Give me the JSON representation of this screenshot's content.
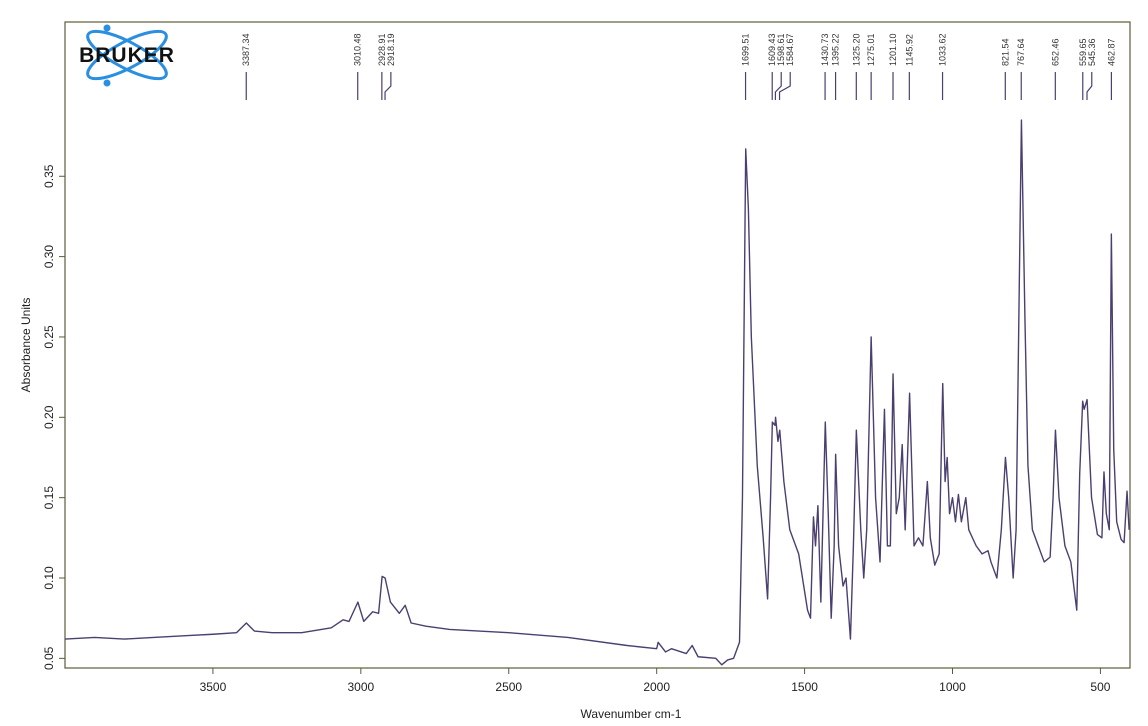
{
  "logo": "BRUKER",
  "chart_data": {
    "type": "line",
    "x_label": "Wavenumber cm-1",
    "y_label": "Absorbance Units",
    "xlim": [
      4000,
      400
    ],
    "ylim": [
      0.044,
      0.446
    ],
    "xticks": [
      3500,
      3000,
      2500,
      2000,
      1500,
      1000,
      500
    ],
    "yticks": [
      {
        "value": 0.05,
        "label": "0.05"
      },
      {
        "value": 0.1,
        "label": "0.10"
      },
      {
        "value": 0.15,
        "label": "0.15"
      },
      {
        "value": 0.2,
        "label": "0.20"
      },
      {
        "value": 0.25,
        "label": "0.25"
      },
      {
        "value": 0.3,
        "label": "0.30"
      },
      {
        "value": 0.35,
        "label": "0.35"
      }
    ],
    "peaks": [
      3387.34,
      3010.48,
      2928.91,
      2918.19,
      1699.51,
      1609.43,
      1598.61,
      1584.67,
      1430.73,
      1395.22,
      {
        "value": 1325.2,
        "label": "1325.20"
      },
      1275.01,
      {
        "value": 1201.1,
        "label": "1201.10"
      },
      1145.92,
      1033.62,
      821.54,
      767.64,
      652.46,
      559.65,
      545.36,
      462.87
    ],
    "series": [
      {
        "name": "spectrum",
        "color": "#4b3f70",
        "x": [
          4000,
          3900,
          3800,
          3700,
          3600,
          3500,
          3420,
          3387,
          3360,
          3300,
          3200,
          3100,
          3060,
          3040,
          3010,
          2990,
          2960,
          2940,
          2928,
          2918,
          2900,
          2870,
          2850,
          2830,
          2780,
          2700,
          2500,
          2300,
          2100,
          2000,
          1995,
          1970,
          1950,
          1900,
          1880,
          1860,
          1800,
          1780,
          1760,
          1740,
          1720,
          1710,
          1699,
          1690,
          1680,
          1660,
          1640,
          1625,
          1615,
          1609,
          1600,
          1598,
          1590,
          1584,
          1570,
          1550,
          1520,
          1490,
          1480,
          1470,
          1463,
          1455,
          1445,
          1430,
          1420,
          1410,
          1400,
          1395,
          1385,
          1370,
          1360,
          1345,
          1335,
          1325,
          1310,
          1300,
          1290,
          1275,
          1260,
          1245,
          1230,
          1220,
          1210,
          1201,
          1190,
          1180,
          1170,
          1160,
          1145,
          1130,
          1115,
          1100,
          1085,
          1075,
          1060,
          1045,
          1033,
          1025,
          1018,
          1010,
          1000,
          990,
          980,
          970,
          955,
          945,
          920,
          900,
          880,
          870,
          850,
          835,
          821,
          810,
          795,
          785,
          767,
          755,
          745,
          730,
          710,
          690,
          670,
          660,
          652,
          640,
          620,
          600,
          580,
          570,
          560,
          555,
          545,
          530,
          510,
          495,
          488,
          480,
          470,
          463,
          455,
          445,
          430,
          420,
          410,
          403
        ],
        "values": [
          0.062,
          0.063,
          0.062,
          0.063,
          0.064,
          0.065,
          0.066,
          0.072,
          0.067,
          0.066,
          0.066,
          0.069,
          0.074,
          0.073,
          0.085,
          0.073,
          0.079,
          0.078,
          0.101,
          0.1,
          0.085,
          0.078,
          0.083,
          0.072,
          0.07,
          0.068,
          0.066,
          0.063,
          0.058,
          0.056,
          0.06,
          0.054,
          0.056,
          0.053,
          0.058,
          0.051,
          0.05,
          0.046,
          0.049,
          0.05,
          0.06,
          0.15,
          0.367,
          0.33,
          0.25,
          0.17,
          0.125,
          0.087,
          0.15,
          0.197,
          0.195,
          0.2,
          0.185,
          0.192,
          0.16,
          0.13,
          0.115,
          0.08,
          0.075,
          0.138,
          0.12,
          0.145,
          0.085,
          0.197,
          0.14,
          0.075,
          0.12,
          0.177,
          0.12,
          0.095,
          0.1,
          0.062,
          0.12,
          0.192,
          0.13,
          0.1,
          0.13,
          0.25,
          0.15,
          0.11,
          0.205,
          0.12,
          0.12,
          0.227,
          0.14,
          0.15,
          0.183,
          0.13,
          0.215,
          0.12,
          0.125,
          0.12,
          0.16,
          0.125,
          0.108,
          0.115,
          0.221,
          0.16,
          0.175,
          0.14,
          0.15,
          0.135,
          0.152,
          0.135,
          0.15,
          0.13,
          0.12,
          0.115,
          0.117,
          0.11,
          0.1,
          0.13,
          0.175,
          0.15,
          0.1,
          0.13,
          0.385,
          0.26,
          0.17,
          0.13,
          0.12,
          0.11,
          0.113,
          0.15,
          0.192,
          0.15,
          0.12,
          0.11,
          0.08,
          0.165,
          0.21,
          0.205,
          0.211,
          0.15,
          0.127,
          0.125,
          0.166,
          0.14,
          0.13,
          0.314,
          0.18,
          0.135,
          0.124,
          0.122,
          0.154,
          0.13
        ]
      }
    ]
  }
}
